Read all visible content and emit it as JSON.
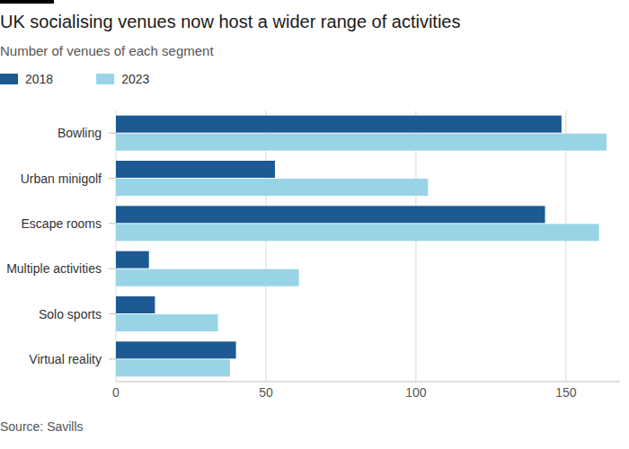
{
  "chart_data": {
    "type": "bar",
    "orientation": "horizontal",
    "title": "UK socialising venues now host a wider range of activities",
    "subtitle": "Number of venues of each segment",
    "source": "Source: Savills",
    "categories": [
      "Bowling",
      "Urban minigolf",
      "Escape rooms",
      "Multiple activities",
      "Solo sports",
      "Virtual reality"
    ],
    "series": [
      {
        "name": "2018",
        "color": "#1d5a94",
        "values": [
          148.5,
          53,
          143,
          11,
          13,
          40
        ]
      },
      {
        "name": "2023",
        "color": "#98d4e6",
        "values": [
          163.5,
          104,
          161,
          61,
          34,
          38
        ]
      }
    ],
    "xlim": [
      0,
      168
    ],
    "xticks": [
      0,
      50,
      100,
      150
    ],
    "grid": true,
    "legend": "top-left"
  }
}
